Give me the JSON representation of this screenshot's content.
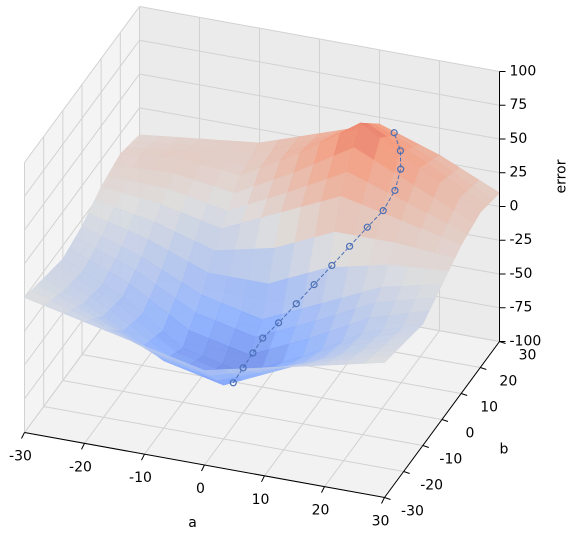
{
  "chart_data": {
    "type": "surface3d",
    "xlabel": "a",
    "ylabel": "b",
    "zlabel": "error",
    "xlim": [
      -30,
      30
    ],
    "ylim": [
      -30,
      30
    ],
    "zlim": [
      -100,
      100
    ],
    "xticks": [
      -30,
      -20,
      -10,
      0,
      10,
      20,
      30
    ],
    "yticks": [
      -30,
      -20,
      -10,
      0,
      10,
      20,
      30
    ],
    "zticks": [
      -100,
      -75,
      -50,
      -25,
      0,
      25,
      50,
      75,
      100
    ],
    "colormap": "coolwarm",
    "grid": true,
    "surface": {
      "x": [
        -30,
        -20,
        -10,
        0,
        10,
        20,
        30
      ],
      "y": [
        -30,
        -20,
        -10,
        0,
        10,
        20,
        30
      ],
      "z": [
        [
          0,
          -10,
          -20,
          -30,
          -20,
          -10,
          0
        ],
        [
          -5,
          -25,
          -50,
          -60,
          -40,
          -20,
          -5
        ],
        [
          -10,
          -30,
          -60,
          -70,
          -50,
          -25,
          -10
        ],
        [
          -5,
          -20,
          -40,
          -50,
          -30,
          -10,
          0
        ],
        [
          5,
          0,
          -10,
          10,
          30,
          20,
          10
        ],
        [
          10,
          15,
          10,
          35,
          65,
          40,
          15
        ],
        [
          5,
          10,
          15,
          30,
          45,
          30,
          10
        ]
      ]
    },
    "path": {
      "color": "#4a6fb5",
      "x": [
        0,
        1,
        2,
        3,
        5,
        7,
        9,
        11,
        13,
        15,
        17,
        18,
        18,
        17,
        15
      ],
      "y": [
        -15,
        -13,
        -11,
        -9,
        -7,
        -4,
        -1,
        2,
        5,
        8,
        10,
        13,
        16,
        19,
        22
      ],
      "z": [
        -68,
        -60,
        -52,
        -44,
        -35,
        -25,
        -15,
        -5,
        5,
        15,
        25,
        35,
        45,
        52,
        58
      ]
    }
  }
}
